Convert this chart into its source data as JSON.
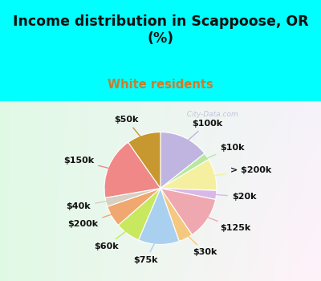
{
  "title": "Income distribution in Scappoose, OR\n(%)",
  "subtitle": "White residents",
  "title_color": "#111111",
  "subtitle_color": "#c87d2e",
  "background_top": "#00ffff",
  "watermark": "  City-Data.com",
  "labels": [
    "$100k",
    "$10k",
    "> $200k",
    "$20k",
    "$125k",
    "$30k",
    "$75k",
    "$60k",
    "$200k",
    "$40k",
    "$150k",
    "$50k"
  ],
  "values": [
    14.0,
    2.0,
    9.0,
    2.5,
    12.0,
    4.0,
    11.5,
    7.0,
    6.0,
    2.5,
    17.5,
    9.5
  ],
  "colors": [
    "#c0b4e0",
    "#b8e8a0",
    "#f5f0a0",
    "#d8b8e8",
    "#f0a8b0",
    "#f5c880",
    "#aad0f0",
    "#c8e860",
    "#f0a870",
    "#d8d0c0",
    "#f08888",
    "#c89830"
  ],
  "startangle": 90,
  "label_fontsize": 8.0,
  "label_color": "#111111"
}
